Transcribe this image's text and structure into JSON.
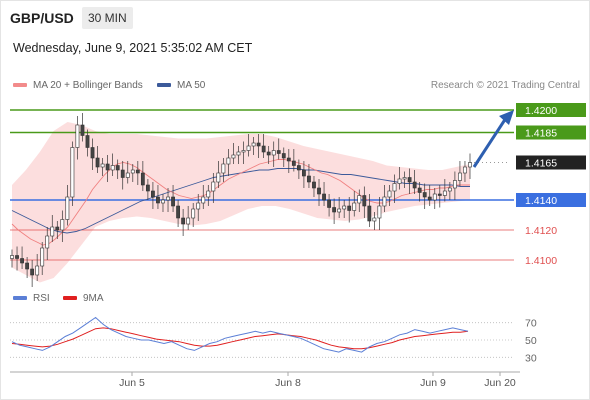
{
  "header": {
    "pair": "GBP/USD",
    "timeframe": "30 MIN",
    "datetime": "Wednesday, June 9, 2021 5:35:02 AM CET"
  },
  "legend": {
    "ma20_label": "MA 20 + Bollinger Bands",
    "ma20_color": "#f28b8b",
    "ma50_label": "MA 50",
    "ma50_color": "#3c5a9a",
    "credit": "Research © 2021 Trading Central"
  },
  "rsi_legend": {
    "rsi_label": "RSI",
    "rsi_color": "#5b7fd6",
    "ma9_label": "9MA",
    "ma9_color": "#e02020"
  },
  "chart_data": [
    {
      "type": "candlestick",
      "title": "GBP/USD 30 MIN",
      "ylim": [
        1.4082,
        1.421
      ],
      "x_labels": [
        "Jun 5",
        "Jun 8",
        "Jun 9",
        "Jun 20"
      ],
      "levels": [
        {
          "label": "1.4200",
          "value": 1.42,
          "kind": "resistance",
          "color": "#4a9a1a"
        },
        {
          "label": "1.4185",
          "value": 1.4185,
          "kind": "resistance",
          "color": "#4a9a1a"
        },
        {
          "label": "1.4165",
          "value": 1.4165,
          "kind": "last-price",
          "color": "#222222"
        },
        {
          "label": "1.4140",
          "value": 1.414,
          "kind": "pivot",
          "color": "#3a6fe0"
        },
        {
          "label": "1.4120",
          "value": 1.412,
          "kind": "support",
          "color": "#e05050"
        },
        {
          "label": "1.4100",
          "value": 1.41,
          "kind": "support",
          "color": "#e05050"
        }
      ],
      "closes": [
        1.4103,
        1.4101,
        1.4098,
        1.4094,
        1.409,
        1.4096,
        1.4108,
        1.4116,
        1.4122,
        1.412,
        1.4127,
        1.4142,
        1.4175,
        1.419,
        1.4183,
        1.4175,
        1.4168,
        1.4162,
        1.4164,
        1.416,
        1.4163,
        1.416,
        1.4155,
        1.4158,
        1.416,
        1.4158,
        1.415,
        1.4146,
        1.4142,
        1.4138,
        1.414,
        1.4142,
        1.4136,
        1.4128,
        1.4124,
        1.4128,
        1.4134,
        1.4138,
        1.4142,
        1.4146,
        1.4152,
        1.4158,
        1.4164,
        1.4168,
        1.417,
        1.4172,
        1.4173,
        1.4176,
        1.4178,
        1.4176,
        1.4172,
        1.417,
        1.4173,
        1.4171,
        1.4168,
        1.4166,
        1.4163,
        1.416,
        1.4156,
        1.4152,
        1.4148,
        1.4144,
        1.414,
        1.4135,
        1.4132,
        1.4134,
        1.4136,
        1.4133,
        1.4138,
        1.4143,
        1.4136,
        1.4126,
        1.4128,
        1.4136,
        1.4142,
        1.4146,
        1.4151,
        1.4154,
        1.4155,
        1.4152,
        1.4148,
        1.4145,
        1.4142,
        1.414,
        1.4144,
        1.4143,
        1.4146,
        1.4148,
        1.4153,
        1.4158,
        1.4162,
        1.4165
      ],
      "ma20": [
        1.4124,
        1.412,
        1.4117,
        1.4114,
        1.4112,
        1.411,
        1.4111,
        1.4114,
        1.4118,
        1.4122,
        1.4128,
        1.4134,
        1.414,
        1.4147,
        1.4152,
        1.4157,
        1.4161,
        1.4164,
        1.4165,
        1.4164,
        1.4162,
        1.4159,
        1.4156,
        1.4153,
        1.415,
        1.4147,
        1.4145,
        1.4143,
        1.4142,
        1.4141,
        1.4142,
        1.4143,
        1.4145,
        1.4148,
        1.4151,
        1.4154,
        1.4156,
        1.4158,
        1.416,
        1.4162,
        1.4164,
        1.4165,
        1.4166,
        1.4167,
        1.4167,
        1.4166,
        1.4165,
        1.4164,
        1.4162,
        1.416,
        1.4158,
        1.4157,
        1.4155,
        1.4153,
        1.415,
        1.4147,
        1.4144,
        1.4141,
        1.4139,
        1.4138,
        1.4138,
        1.4139,
        1.4141,
        1.4143,
        1.4144,
        1.4145,
        1.4146,
        1.4147,
        1.4147,
        1.4148,
        1.4148,
        1.4149,
        1.415,
        1.415,
        1.415
      ],
      "ma50": [
        1.4133,
        1.413,
        1.4127,
        1.4124,
        1.4121,
        1.4119,
        1.4118,
        1.4119,
        1.4121,
        1.4124,
        1.4127,
        1.413,
        1.4133,
        1.4136,
        1.4139,
        1.4141,
        1.4143,
        1.4145,
        1.4147,
        1.4149,
        1.4151,
        1.4153,
        1.4155,
        1.4156,
        1.4157,
        1.4158,
        1.4159,
        1.416,
        1.416,
        1.4161,
        1.4161,
        1.4161,
        1.416,
        1.416,
        1.4159,
        1.4158,
        1.4157,
        1.4157,
        1.4156,
        1.4155,
        1.4154,
        1.4153,
        1.4152,
        1.4151,
        1.4151,
        1.415,
        1.415,
        1.415,
        1.415,
        1.4149,
        1.4149
      ],
      "bb_upper": [
        1.415,
        1.416,
        1.4172,
        1.4186,
        1.4192,
        1.419,
        1.4186,
        1.4184,
        1.4184,
        1.4184,
        1.4183,
        1.4182,
        1.4181,
        1.4181,
        1.4181,
        1.4182,
        1.4183,
        1.4184,
        1.4184,
        1.4182,
        1.4179,
        1.4176,
        1.4174,
        1.4172,
        1.417,
        1.4168,
        1.4166,
        1.4163,
        1.4162,
        1.4161,
        1.416,
        1.416,
        1.4162,
        1.4164
      ],
      "bb_lower": [
        1.4095,
        1.409,
        1.4085,
        1.4088,
        1.4098,
        1.411,
        1.4122,
        1.4126,
        1.4128,
        1.4129,
        1.4128,
        1.4126,
        1.4124,
        1.4123,
        1.4124,
        1.4126,
        1.413,
        1.4134,
        1.4136,
        1.4136,
        1.4134,
        1.4131,
        1.4128,
        1.4127,
        1.4126,
        1.4127,
        1.4129,
        1.4132,
        1.4134,
        1.4136,
        1.4137,
        1.4138,
        1.4139,
        1.414
      ]
    },
    {
      "type": "line",
      "title": "RSI",
      "ylim": [
        20,
        80
      ],
      "y_ticks": [
        "70",
        "50",
        "30"
      ],
      "series": [
        {
          "name": "RSI",
          "values": [
            48,
            44,
            42,
            40,
            38,
            42,
            48,
            54,
            58,
            64,
            70,
            76,
            68,
            62,
            58,
            54,
            52,
            50,
            50,
            48,
            46,
            48,
            44,
            40,
            38,
            42,
            46,
            48,
            52,
            54,
            56,
            58,
            60,
            58,
            60,
            58,
            56,
            54,
            52,
            48,
            44,
            40,
            38,
            36,
            40,
            38,
            36,
            42,
            46,
            48,
            52,
            56,
            58,
            62,
            60,
            58,
            60,
            62,
            64,
            62,
            60
          ]
        },
        {
          "name": "9MA",
          "values": [
            46,
            45,
            44,
            43,
            42,
            43,
            45,
            48,
            51,
            55,
            59,
            63,
            64,
            63,
            61,
            59,
            57,
            55,
            53,
            51,
            50,
            49,
            48,
            46,
            44,
            43,
            43,
            44,
            46,
            48,
            50,
            52,
            54,
            55,
            56,
            57,
            56,
            55,
            54,
            52,
            50,
            47,
            44,
            42,
            41,
            40,
            40,
            41,
            43,
            45,
            47,
            50,
            52,
            54,
            55,
            56,
            57,
            58,
            59,
            59,
            60
          ]
        }
      ]
    }
  ]
}
